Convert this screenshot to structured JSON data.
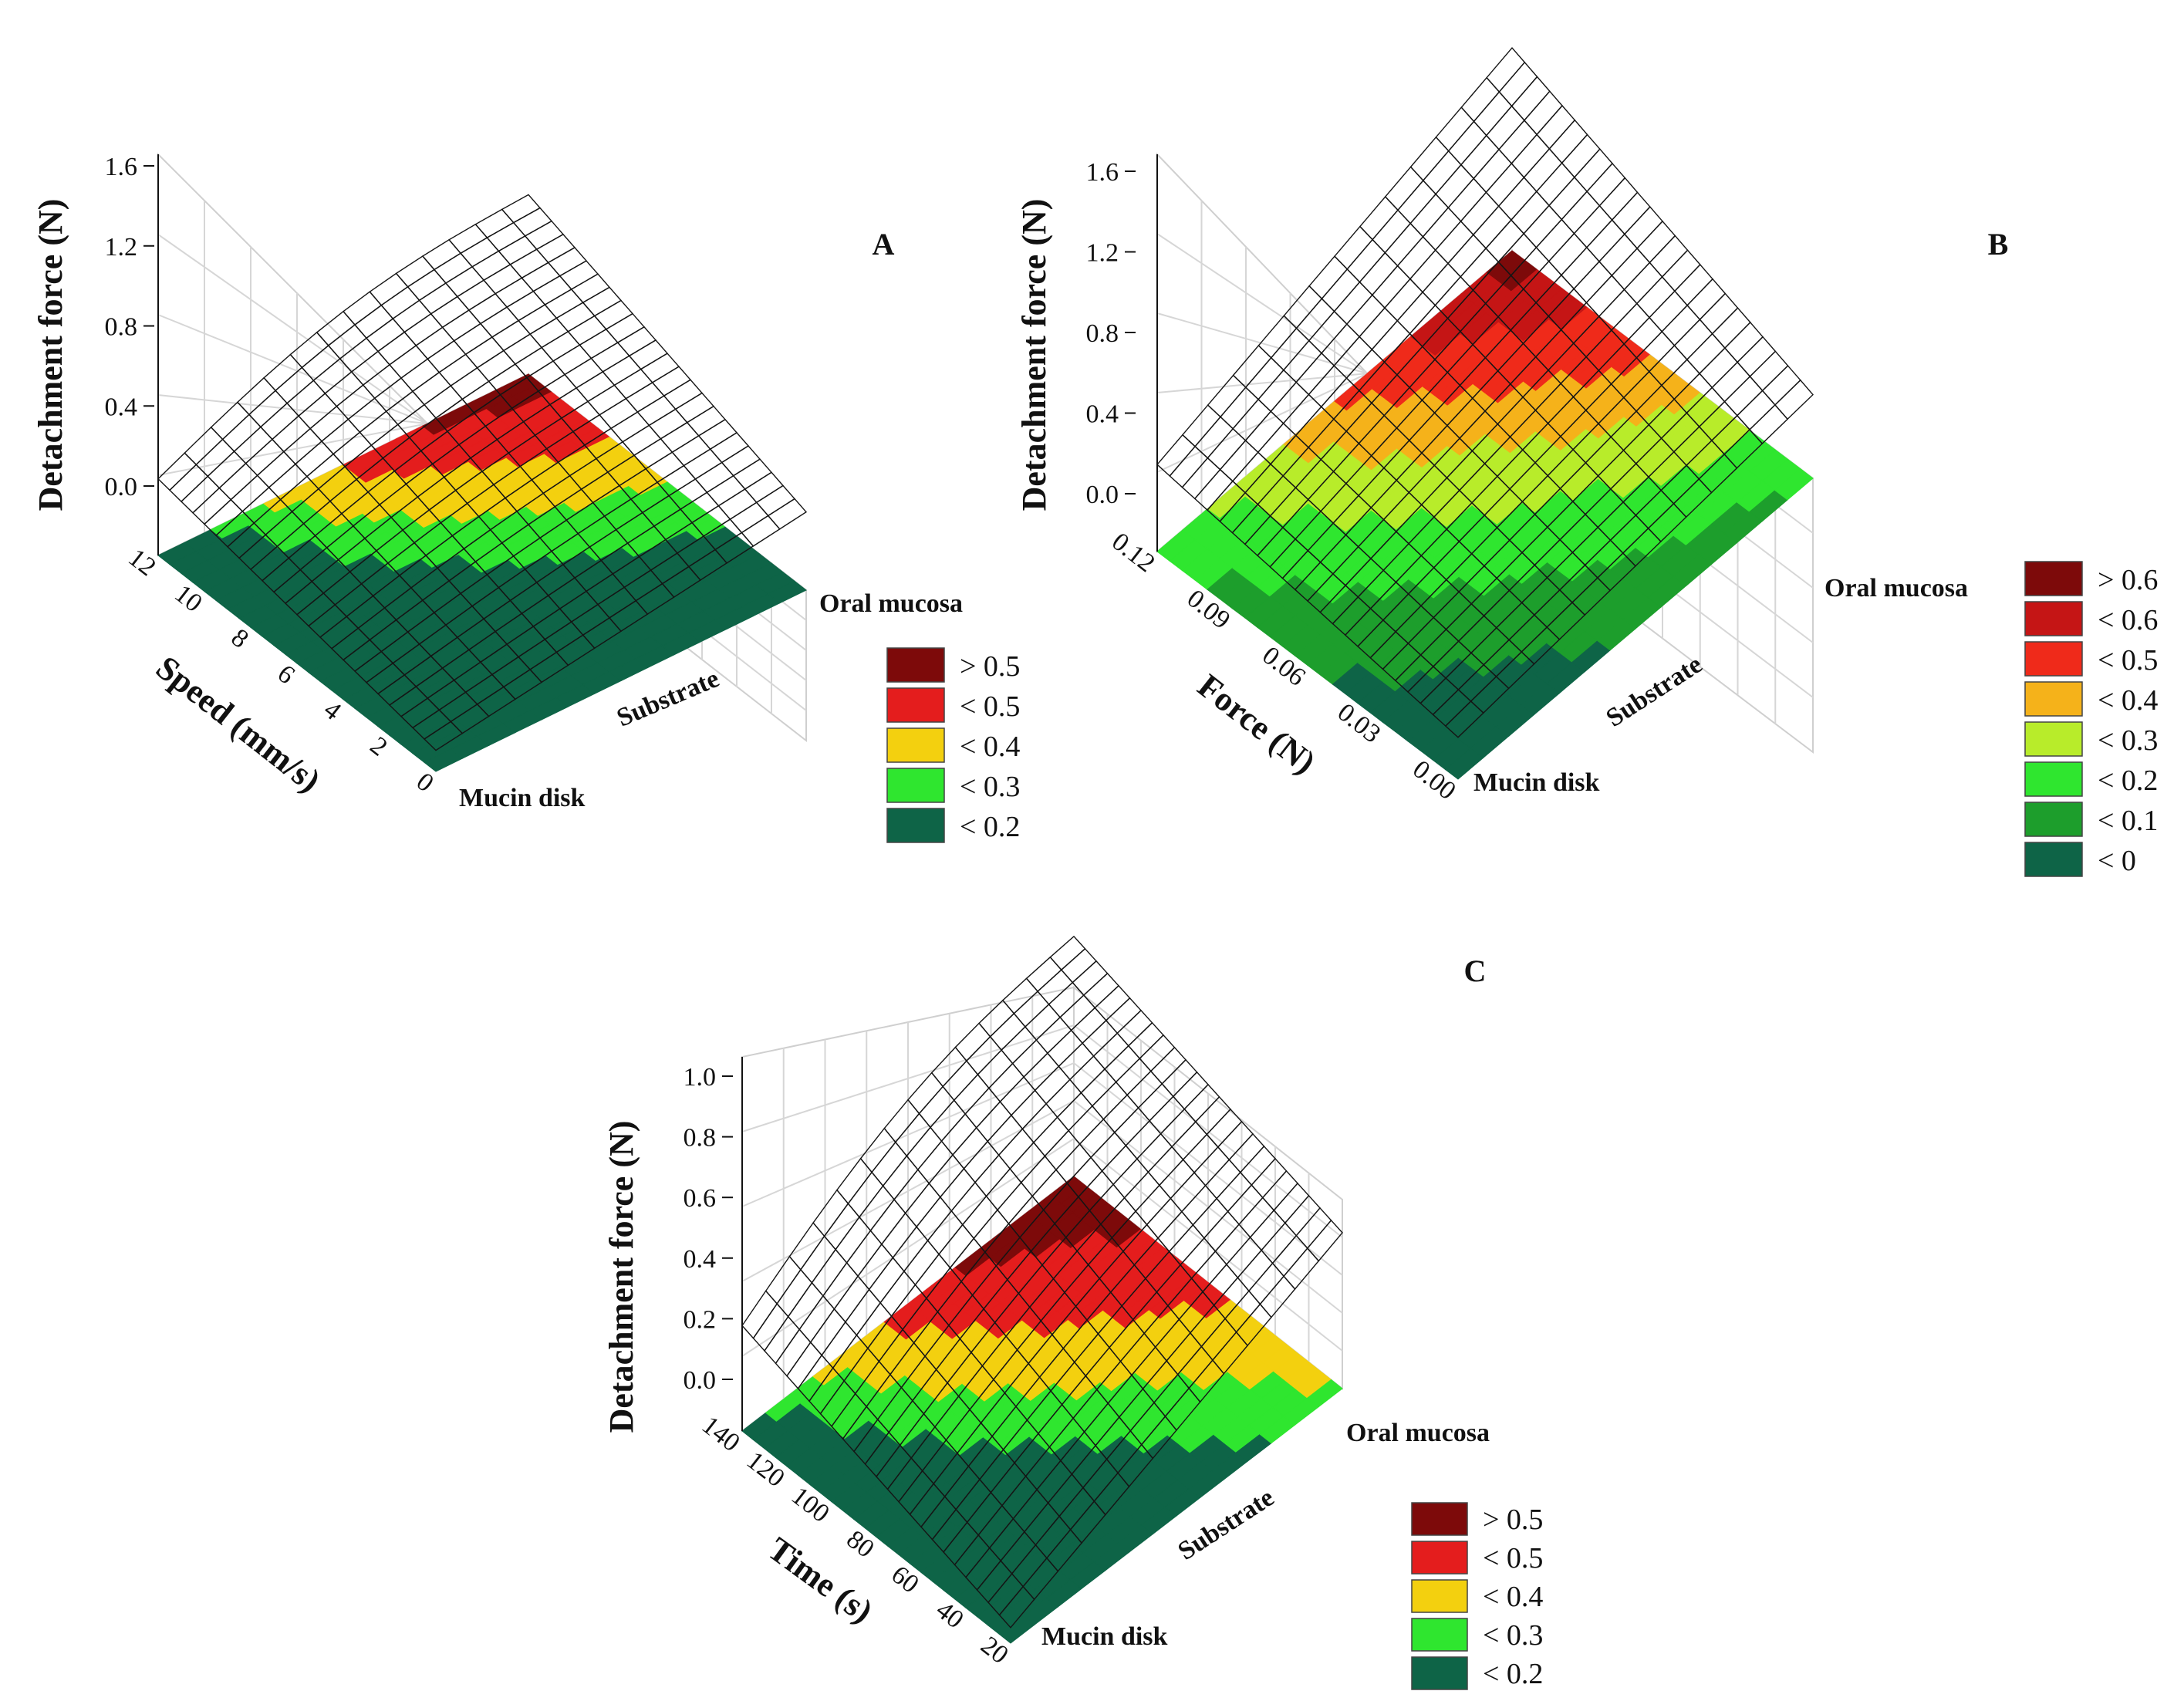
{
  "chart_data": [
    {
      "type": "surface3d",
      "panel_label": "A",
      "zlabel": "Detachment force (N)",
      "xlabel": "Speed (mm/s)",
      "ylabel": "Substrate",
      "z_ticks": [
        "1.6",
        "1.2",
        "0.8",
        "0.4",
        "0.0"
      ],
      "zlim": [
        -0.3,
        1.6
      ],
      "x_ticks": [
        "12",
        "10",
        "8",
        "6",
        "4",
        "2",
        "0"
      ],
      "xlim": [
        0,
        12
      ],
      "y_categories": [
        "Mucin disk",
        "Oral mucosa"
      ],
      "surface_corners": {
        "max_x_oral_mucosa": 0.55,
        "min_x_oral_mucosa": 0.35,
        "min_x_mucin_disk": -0.05,
        "max_x_mucin_disk": -0.2
      },
      "legend": [
        {
          "label": "> 0.5",
          "color": "#7d0a0a"
        },
        {
          "label": "< 0.5",
          "color": "#e41d1d"
        },
        {
          "label": "< 0.4",
          "color": "#f3d00f"
        },
        {
          "label": "< 0.3",
          "color": "#2fe62f"
        },
        {
          "label": "< 0.2",
          "color": "#0e6447"
        }
      ]
    },
    {
      "type": "surface3d",
      "panel_label": "B",
      "zlabel": "Detachment force (N)",
      "xlabel": "Force (N)",
      "ylabel": "Substrate",
      "z_ticks": [
        "1.6",
        "1.2",
        "0.8",
        "0.4",
        "0.0"
      ],
      "zlim": [
        -0.3,
        1.6
      ],
      "x_ticks": [
        "0.12",
        "0.09",
        "0.06",
        "0.03",
        "0.00"
      ],
      "xlim": [
        0,
        0.12
      ],
      "y_categories": [
        "Mucin disk",
        "Oral mucosa"
      ],
      "surface_corners": {
        "max_x_oral_mucosa": 0.66,
        "min_x_oral_mucosa": 0.1,
        "min_x_mucin_disk": -0.1,
        "max_x_mucin_disk": 0.0
      },
      "legend": [
        {
          "label": "> 0.6",
          "color": "#7d0a0a"
        },
        {
          "label": "< 0.6",
          "color": "#c51515"
        },
        {
          "label": "< 0.5",
          "color": "#ef2a1a"
        },
        {
          "label": "< 0.4",
          "color": "#f5b21a"
        },
        {
          "label": "< 0.3",
          "color": "#b8ec2a"
        },
        {
          "label": "< 0.2",
          "color": "#2fe62f"
        },
        {
          "label": "< 0.1",
          "color": "#1d9e2c"
        },
        {
          "label": "< 0",
          "color": "#0e6447"
        }
      ]
    },
    {
      "type": "surface3d",
      "panel_label": "C",
      "zlabel": "Detachment force (N)",
      "xlabel": "Time (s)",
      "ylabel": "Substrate",
      "z_ticks": [
        "1.0",
        "0.8",
        "0.6",
        "0.4",
        "0.2",
        "0.0"
      ],
      "zlim": [
        -0.2,
        1.0
      ],
      "x_ticks": [
        "140",
        "120",
        "100",
        "80",
        "60",
        "40",
        "20"
      ],
      "xlim": [
        20,
        140
      ],
      "y_categories": [
        "Mucin disk",
        "Oral mucosa"
      ],
      "surface_corners": {
        "max_x_oral_mucosa": 0.57,
        "min_x_oral_mucosa": 0.3,
        "min_x_mucin_disk": -0.06,
        "max_x_mucin_disk": -0.15
      },
      "legend": [
        {
          "label": "> 0.5",
          "color": "#7d0a0a"
        },
        {
          "label": "< 0.5",
          "color": "#e41d1d"
        },
        {
          "label": "< 0.4",
          "color": "#f3d00f"
        },
        {
          "label": "< 0.3",
          "color": "#2fe62f"
        },
        {
          "label": "< 0.2",
          "color": "#0e6447"
        }
      ]
    }
  ]
}
